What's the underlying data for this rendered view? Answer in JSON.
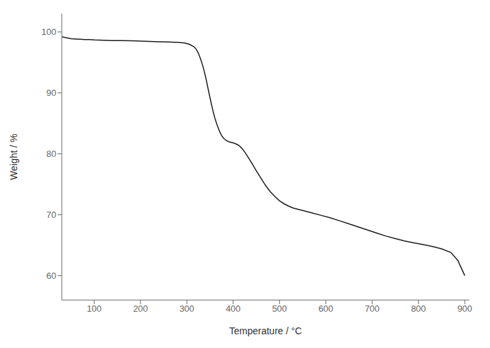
{
  "chart_data": {
    "type": "line",
    "xlabel": "Temperature / °C",
    "ylabel": "Weight / %",
    "xlim": [
      30,
      910
    ],
    "ylim": [
      56,
      103
    ],
    "xticks": [
      100,
      200,
      300,
      400,
      500,
      600,
      700,
      800,
      900
    ],
    "yticks": [
      60,
      70,
      80,
      90,
      100
    ],
    "grid": false,
    "color": "#1a1a1a",
    "x": [
      30,
      50,
      60,
      70,
      80,
      90,
      100,
      120,
      140,
      160,
      180,
      200,
      220,
      240,
      260,
      280,
      295,
      305,
      315,
      320,
      325,
      330,
      335,
      340,
      345,
      350,
      355,
      360,
      365,
      370,
      375,
      380,
      385,
      390,
      395,
      400,
      410,
      415,
      420,
      425,
      430,
      440,
      450,
      460,
      470,
      480,
      490,
      500,
      510,
      520,
      530,
      540,
      550,
      570,
      590,
      610,
      630,
      650,
      670,
      690,
      710,
      730,
      750,
      770,
      790,
      810,
      830,
      850,
      870,
      885,
      900
    ],
    "values": [
      99.2,
      98.9,
      98.85,
      98.8,
      98.75,
      98.75,
      98.7,
      98.65,
      98.6,
      98.6,
      98.55,
      98.5,
      98.45,
      98.4,
      98.35,
      98.3,
      98.2,
      98.0,
      97.6,
      97.2,
      96.5,
      95.5,
      94.3,
      92.8,
      91.0,
      89.2,
      87.5,
      86.0,
      84.8,
      83.8,
      83.0,
      82.5,
      82.2,
      82.0,
      81.9,
      81.8,
      81.5,
      81.2,
      80.8,
      80.3,
      79.7,
      78.5,
      77.2,
      76.0,
      74.8,
      73.8,
      73.0,
      72.3,
      71.8,
      71.4,
      71.1,
      70.9,
      70.7,
      70.3,
      69.9,
      69.5,
      69.0,
      68.5,
      68.0,
      67.5,
      67.0,
      66.5,
      66.1,
      65.7,
      65.4,
      65.1,
      64.8,
      64.4,
      63.8,
      62.5,
      60.0
    ]
  }
}
